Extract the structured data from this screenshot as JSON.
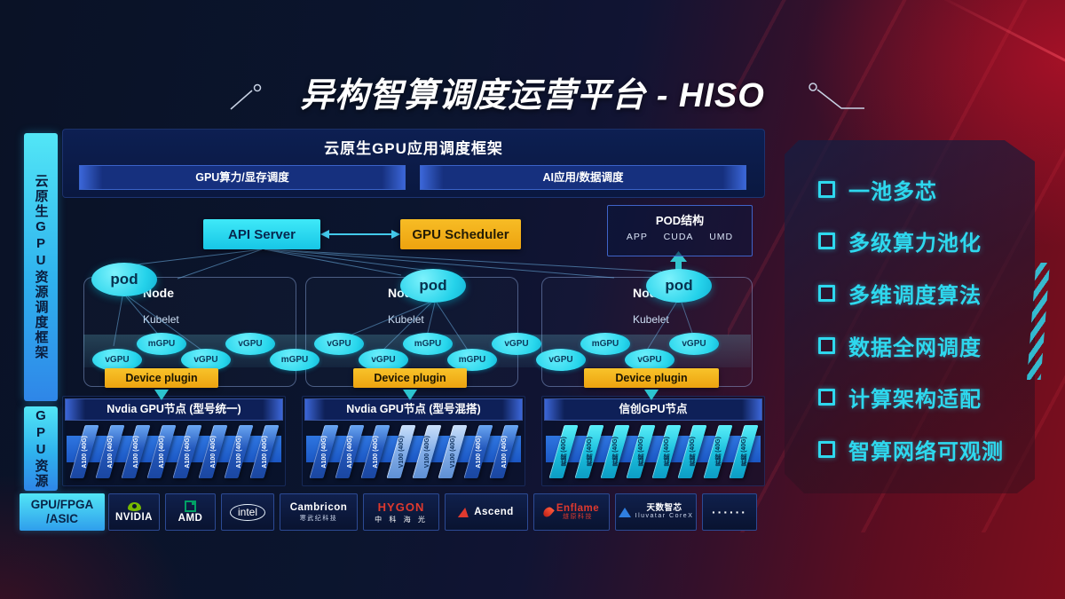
{
  "title": "异构智算调度运营平台 - HISO",
  "sidebar": {
    "frame_label": "云原生GPU资源调度框架",
    "gpu_label": "GPU资源"
  },
  "scheduler_panel": {
    "title": "云原生GPU应用调度框架",
    "left_bar": "GPU算力/显存调度",
    "right_bar": "AI应用/数据调度"
  },
  "control": {
    "api_server": "API Server",
    "gpu_scheduler": "GPU Scheduler"
  },
  "pod_structure": {
    "title": "POD结构",
    "items": [
      "APP",
      "CUDA",
      "UMD"
    ]
  },
  "nodes": [
    {
      "label": "Node",
      "kubelet": "Kubelet",
      "pod": "pod",
      "device_plugin": "Device plugin"
    },
    {
      "label": "Node",
      "kubelet": "Kubelet",
      "pod": "pod",
      "device_plugin": "Device plugin"
    },
    {
      "label": "Node",
      "kubelet": "Kubelet",
      "pod": "pod",
      "device_plugin": "Device plugin"
    }
  ],
  "gpu_band": [
    {
      "label": "vGPU",
      "pos": "low"
    },
    {
      "label": "mGPU",
      "pos": "high"
    },
    {
      "label": "vGPU",
      "pos": "low"
    },
    {
      "label": "vGPU",
      "pos": "high"
    },
    {
      "label": "mGPU",
      "pos": "low"
    },
    {
      "label": "vGPU",
      "pos": "high"
    },
    {
      "label": "vGPU",
      "pos": "low"
    },
    {
      "label": "mGPU",
      "pos": "high"
    },
    {
      "label": "mGPU",
      "pos": "low"
    },
    {
      "label": "vGPU",
      "pos": "high"
    },
    {
      "label": "vGPU",
      "pos": "low"
    },
    {
      "label": "mGPU",
      "pos": "high"
    },
    {
      "label": "vGPU",
      "pos": "low"
    },
    {
      "label": "vGPU",
      "pos": "high"
    }
  ],
  "gpu_rows": [
    {
      "title": "Nvdia GPU节点 (型号统一)",
      "cards": [
        {
          "label": "A100 (40G)",
          "variant": "blue"
        },
        {
          "label": "A100 (40G)",
          "variant": "blue"
        },
        {
          "label": "A100 (40G)",
          "variant": "blue"
        },
        {
          "label": "A100 (40G)",
          "variant": "blue"
        },
        {
          "label": "A100 (40G)",
          "variant": "blue"
        },
        {
          "label": "A100 (40G)",
          "variant": "blue"
        },
        {
          "label": "A100 (40G)",
          "variant": "blue"
        },
        {
          "label": "A100 (40G)",
          "variant": "blue"
        }
      ]
    },
    {
      "title": "Nvdia GPU节点 (型号混搭)",
      "cards": [
        {
          "label": "A100 (40G)",
          "variant": "blue"
        },
        {
          "label": "A100 (40G)",
          "variant": "blue"
        },
        {
          "label": "A100 (40G)",
          "variant": "blue"
        },
        {
          "label": "V100 (40G)",
          "variant": "light"
        },
        {
          "label": "V100 (40G)",
          "variant": "light"
        },
        {
          "label": "V100 (40G)",
          "variant": "light"
        },
        {
          "label": "A100 (40G)",
          "variant": "blue"
        },
        {
          "label": "A100 (40G)",
          "variant": "blue"
        }
      ]
    },
    {
      "title": "信创GPU节点",
      "cards": [
        {
          "label": "昇腾 (40G)",
          "variant": "cyan"
        },
        {
          "label": "昇腾 (40G)",
          "variant": "cyan"
        },
        {
          "label": "昇腾 (40G)",
          "variant": "cyan"
        },
        {
          "label": "昇腾 (40G)",
          "variant": "cyan"
        },
        {
          "label": "昇腾 (40G)",
          "variant": "cyan"
        },
        {
          "label": "昇腾 (40G)",
          "variant": "cyan"
        },
        {
          "label": "昇腾 (40G)",
          "variant": "cyan"
        },
        {
          "label": "昇腾 (40G)",
          "variant": "cyan"
        }
      ]
    }
  ],
  "vendor_bar": {
    "label_line1": "GPU/FPGA",
    "label_line2": "/ASIC",
    "vendors": [
      {
        "id": "nvidia",
        "label": "NVIDIA",
        "icon": "nvidia-eye-icon"
      },
      {
        "id": "amd",
        "label": "AMD",
        "icon": "amd-square-icon"
      },
      {
        "id": "intel",
        "label": "intel",
        "icon": "intel-oval"
      },
      {
        "id": "cambricon",
        "label": "Cambricon",
        "sub": "寒武纪科技"
      },
      {
        "id": "hygon",
        "label": "HYGON",
        "sub": "中 科 海 光"
      },
      {
        "id": "ascend",
        "label": "Ascend",
        "icon": "ascend-triangle-icon"
      },
      {
        "id": "enflame",
        "label": "Enflame",
        "sub": "燧原科技",
        "icon": "enflame-flame-icon"
      },
      {
        "id": "iluvatar",
        "label": "天数智芯",
        "sub": "Iluvatar CoreX",
        "icon": "iluvatar-triangle-icon"
      },
      {
        "id": "dots",
        "label": "······"
      }
    ]
  },
  "features": {
    "items": [
      "一池多芯",
      "多级算力池化",
      "多维调度算法",
      "数据全网调度",
      "计算架构适配",
      "智算网络可观测"
    ]
  },
  "colors": {
    "cyan_box": "#2ee4f7",
    "amber_box": "#f2ad15",
    "feature_cyan": "#2ed8ee",
    "card_blue": "#2a62c4",
    "card_cyan": "#1cc0de",
    "nvidia_green": "#76b900",
    "logo_red": "#e0392e",
    "panel_navy": "#0d1f52",
    "bg_red": "#7e0e1d"
  }
}
